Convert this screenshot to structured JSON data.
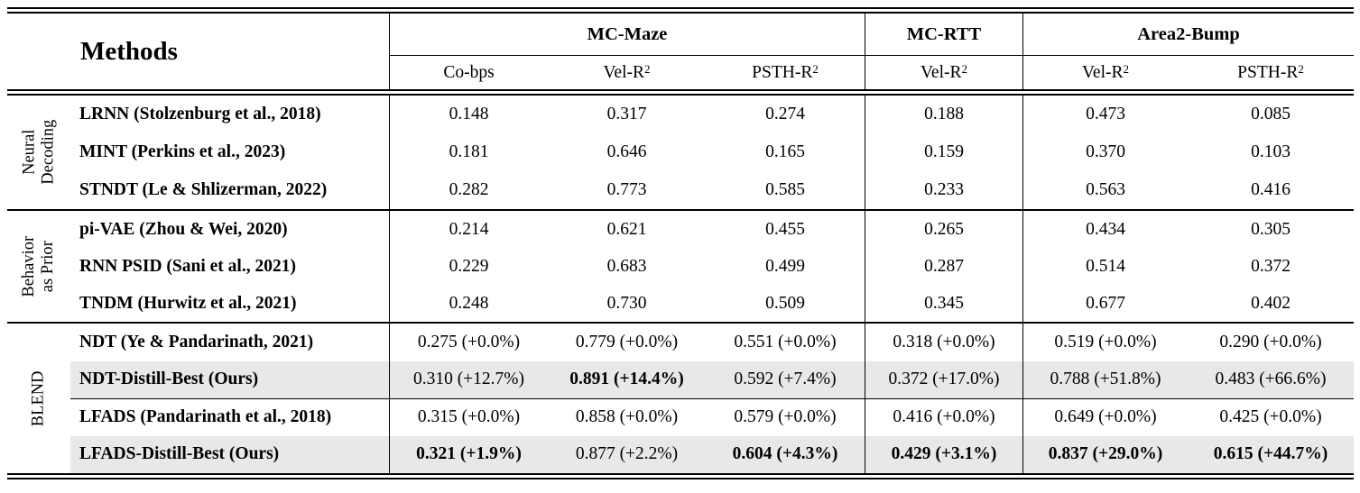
{
  "header": {
    "methods_label": "Methods",
    "col_groups": [
      {
        "label": "MC-Maze",
        "metrics": [
          {
            "base": "Co-bps",
            "sup": ""
          },
          {
            "base": "Vel-R",
            "sup": "2"
          },
          {
            "base": "PSTH-R",
            "sup": "2"
          }
        ]
      },
      {
        "label": "MC-RTT",
        "metrics": [
          {
            "base": "Vel-R",
            "sup": "2"
          }
        ]
      },
      {
        "label": "Area2-Bump",
        "metrics": [
          {
            "base": "Vel-R",
            "sup": "2"
          },
          {
            "base": "PSTH-R",
            "sup": "2"
          }
        ]
      }
    ]
  },
  "groups": [
    {
      "label_lines": [
        "Neural",
        "Decoding"
      ],
      "rows": [
        {
          "method": "LRNN (Stolzenburg et al., 2018)",
          "values": [
            "0.148",
            "0.317",
            "0.274",
            "0.188",
            "0.473",
            "0.085"
          ]
        },
        {
          "method": "MINT (Perkins et al., 2023)",
          "values": [
            "0.181",
            "0.646",
            "0.165",
            "0.159",
            "0.370",
            "0.103"
          ]
        },
        {
          "method": "STNDT (Le & Shlizerman, 2022)",
          "values": [
            "0.282",
            "0.773",
            "0.585",
            "0.233",
            "0.563",
            "0.416"
          ]
        }
      ]
    },
    {
      "label_lines": [
        "Behavior",
        "as Prior"
      ],
      "rows": [
        {
          "method": "pi-VAE (Zhou & Wei, 2020)",
          "values": [
            "0.214",
            "0.621",
            "0.455",
            "0.265",
            "0.434",
            "0.305"
          ]
        },
        {
          "method": "RNN PSID (Sani et al., 2021)",
          "values": [
            "0.229",
            "0.683",
            "0.499",
            "0.287",
            "0.514",
            "0.372"
          ]
        },
        {
          "method": "TNDM (Hurwitz et al., 2021)",
          "values": [
            "0.248",
            "0.730",
            "0.509",
            "0.345",
            "0.677",
            "0.402"
          ]
        }
      ]
    },
    {
      "label_lines": [
        "BLEND"
      ],
      "rows": [
        {
          "method": "NDT (Ye & Pandarinath, 2021)",
          "highlighted": false,
          "bold_value_indices": [],
          "values": [
            "0.275 (+0.0%)",
            "0.779 (+0.0%)",
            "0.551 (+0.0%)",
            "0.318 (+0.0%)",
            "0.519 (+0.0%)",
            "0.290 (+0.0%)"
          ]
        },
        {
          "method": "NDT-Distill-Best (Ours)",
          "highlighted": true,
          "bold_value_indices": [
            1
          ],
          "values": [
            "0.310 (+12.7%)",
            "0.891 (+14.4%)",
            "0.592 (+7.4%)",
            "0.372 (+17.0%)",
            "0.788 (+51.8%)",
            "0.483 (+66.6%)"
          ]
        },
        {
          "method": "LFADS (Pandarinath et al., 2018)",
          "highlighted": false,
          "bold_value_indices": [],
          "values": [
            "0.315 (+0.0%)",
            "0.858 (+0.0%)",
            "0.579 (+0.0%)",
            "0.416 (+0.0%)",
            "0.649 (+0.0%)",
            "0.425 (+0.0%)"
          ]
        },
        {
          "method": "LFADS-Distill-Best (Ours)",
          "highlighted": true,
          "bold_value_indices": [
            0,
            2,
            3,
            4,
            5
          ],
          "values": [
            "0.321 (+1.9%)",
            "0.877 (+2.2%)",
            "0.604 (+4.3%)",
            "0.429 (+3.1%)",
            "0.837 (+29.0%)",
            "0.615 (+44.7%)"
          ]
        }
      ]
    }
  ],
  "colors": {
    "row_highlight": "#e8e8e8",
    "text": "#000000",
    "rule": "#000000"
  }
}
